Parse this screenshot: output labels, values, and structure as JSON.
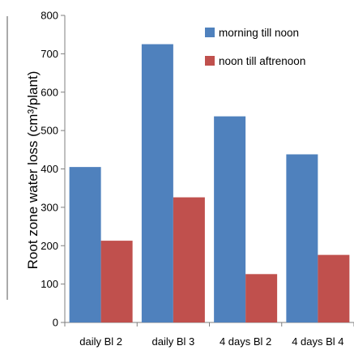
{
  "chart_data": {
    "type": "bar",
    "ylabel": "Root  zone water loss   (cm³/plant)",
    "categories": [
      "daily Bl 2",
      "daily Bl 3",
      "4 days Bl 2",
      "4 days Bl 4"
    ],
    "series": [
      {
        "name": "morning till noon",
        "values": [
          405,
          725,
          537,
          438
        ],
        "color": "#4f81bd"
      },
      {
        "name": "noon till aftrenoon",
        "values": [
          213,
          326,
          126,
          176
        ],
        "color": "#c0504d"
      }
    ],
    "ylim": [
      0,
      800
    ],
    "yticks": [
      0,
      100,
      200,
      300,
      400,
      500,
      600,
      700,
      800
    ],
    "grid": false,
    "legend_position": "top-right"
  }
}
